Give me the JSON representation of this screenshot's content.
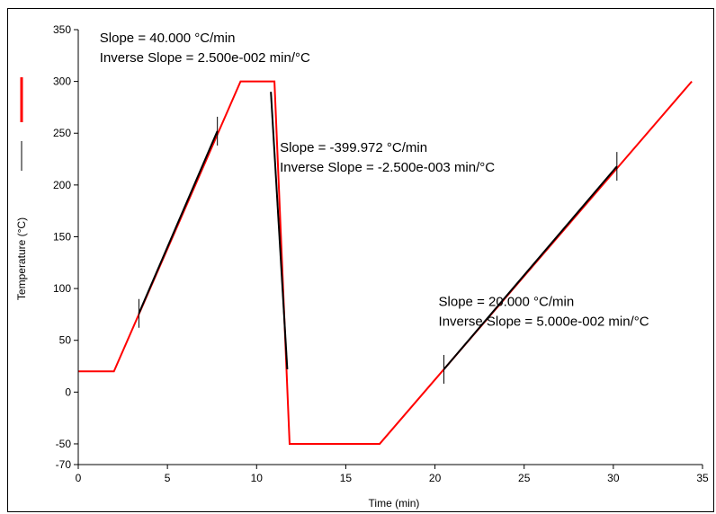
{
  "chart_data": {
    "type": "line",
    "title": "",
    "xlabel": "Time (min)",
    "ylabel": "Temperature (°C)",
    "xlim": [
      0,
      35
    ],
    "ylim": [
      -70,
      350
    ],
    "x_ticks": [
      0,
      5,
      10,
      15,
      20,
      25,
      30,
      35
    ],
    "y_ticks": [
      -70,
      -50,
      0,
      50,
      100,
      150,
      200,
      250,
      300,
      350
    ],
    "grid": false,
    "legend": "left-vertical",
    "colors": {
      "temperature": "#ff0000",
      "fit": "#000000"
    },
    "series": [
      {
        "name": "Temperature (°C)",
        "x": [
          0,
          2,
          9.1,
          11,
          11.85,
          16.9,
          34.4
        ],
        "y": [
          20,
          20,
          300,
          300,
          -50,
          -50,
          300
        ]
      }
    ],
    "fits": [
      {
        "x": [
          3.4,
          7.8
        ],
        "y": [
          76,
          252
        ]
      },
      {
        "x": [
          10.8,
          11.72
        ],
        "y": [
          290,
          22
        ]
      },
      {
        "x": [
          20.5,
          30.2
        ],
        "y": [
          22,
          218
        ]
      }
    ],
    "fit_markers": [
      {
        "x": 3.4,
        "y": 76
      },
      {
        "x": 7.8,
        "y": 252
      },
      {
        "x": 20.5,
        "y": 22
      },
      {
        "x": 30.2,
        "y": 218
      }
    ],
    "annotations": [
      {
        "lines": [
          "Slope  = 40.000 °C/min",
          "Inverse Slope  = 2.500e-002 min/°C"
        ],
        "x": 1.2,
        "y": 338
      },
      {
        "lines": [
          "Slope  = -399.972 °C/min",
          "Inverse Slope  = -2.500e-003 min/°C"
        ],
        "x": 11.3,
        "y": 232
      },
      {
        "lines": [
          "Slope  = 20.000 °C/min",
          "Inverse Slope  = 5.000e-002 min/°C"
        ],
        "x": 20.2,
        "y": 83
      }
    ]
  }
}
